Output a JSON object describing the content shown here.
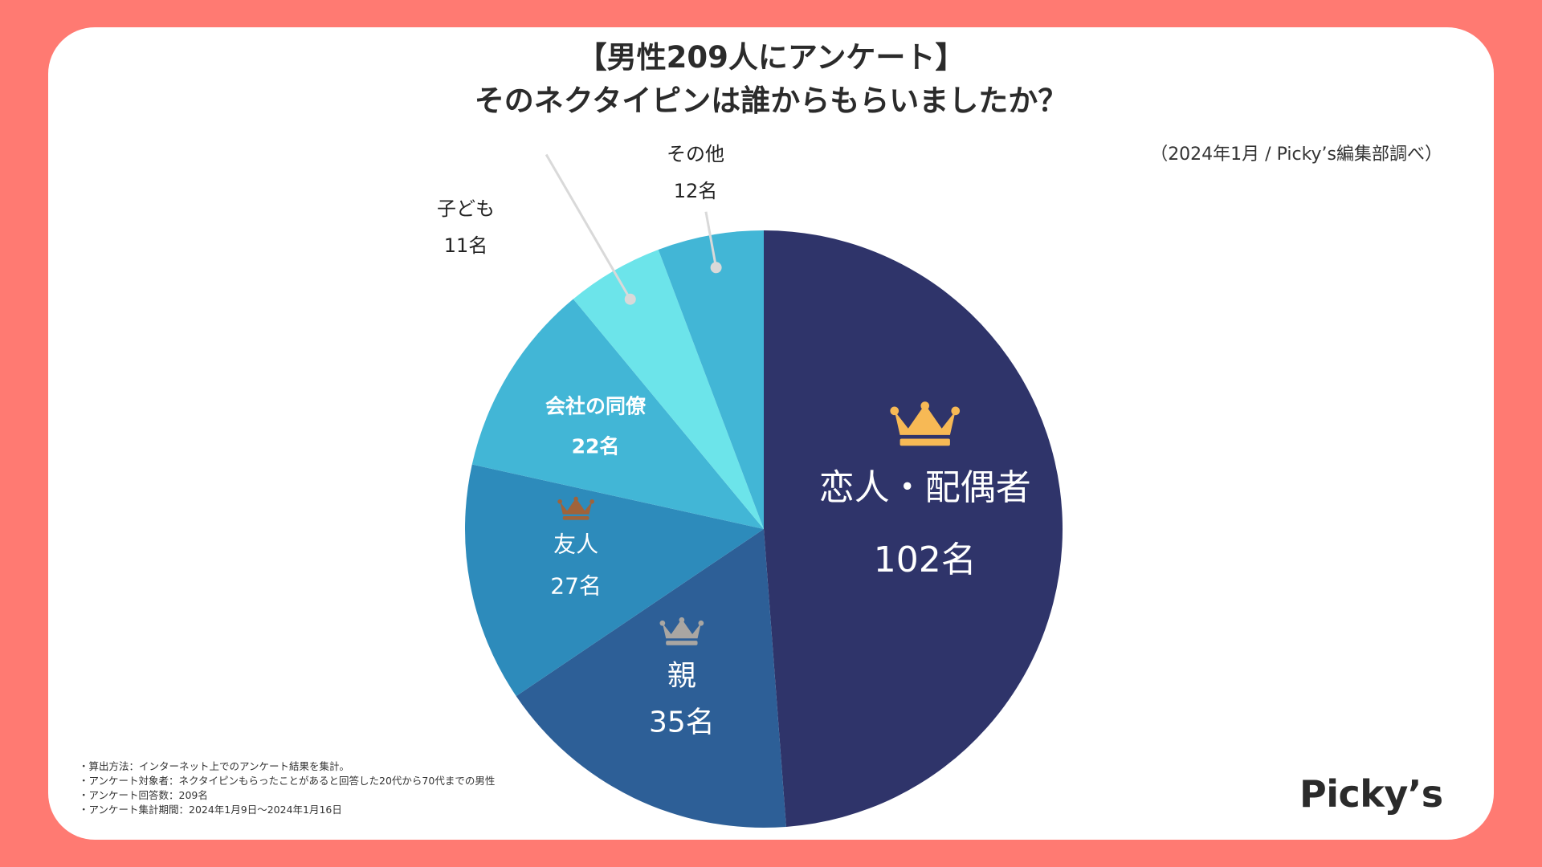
{
  "title": {
    "line1": "【男性209人にアンケート】",
    "line2": "そのネクタイピンは誰からもらいましたか？"
  },
  "source": "（2024年1月 / Picky’s編集部調べ）",
  "footnotes": [
    "・算出方法：インターネット上でのアンケート結果を集計。",
    "・アンケート対象者：ネクタイピンもらったことがあると回答した20代から70代までの男性",
    "・アンケート回答数：209名",
    "・アンケート集計期間：2024年1月9日〜2024年1月16日"
  ],
  "logo": "Picky’s",
  "colors": {
    "background": "#ff7a72",
    "gold": "#f7b955",
    "silver": "#a9a6a2",
    "bronze": "#a0633a"
  },
  "chart_data": {
    "type": "pie",
    "title": "そのネクタイピンは誰からもらいましたか？",
    "total": 209,
    "start_angle": "12 o'clock, clockwise",
    "slices": [
      {
        "name": "恋人・配偶者",
        "value": 102,
        "value_label": "102名",
        "color": "#2f346a",
        "rank_icon": "gold-crown-icon"
      },
      {
        "name": "親",
        "value": 35,
        "value_label": "35名",
        "color": "#2d5f97",
        "rank_icon": "silver-crown-icon"
      },
      {
        "name": "友人",
        "value": 27,
        "value_label": "27名",
        "color": "#2d8bbb",
        "rank_icon": "bronze-crown-icon"
      },
      {
        "name": "会社の同僚",
        "value": 22,
        "value_label": "22名",
        "color": "#42b6d6",
        "rank_icon": ""
      },
      {
        "name": "子ども",
        "value": 11,
        "value_label": "11名",
        "color": "#6ce4ea",
        "rank_icon": ""
      },
      {
        "name": "その他",
        "value": 12,
        "value_label": "12名",
        "color": "#42b6d6",
        "rank_icon": ""
      }
    ]
  }
}
